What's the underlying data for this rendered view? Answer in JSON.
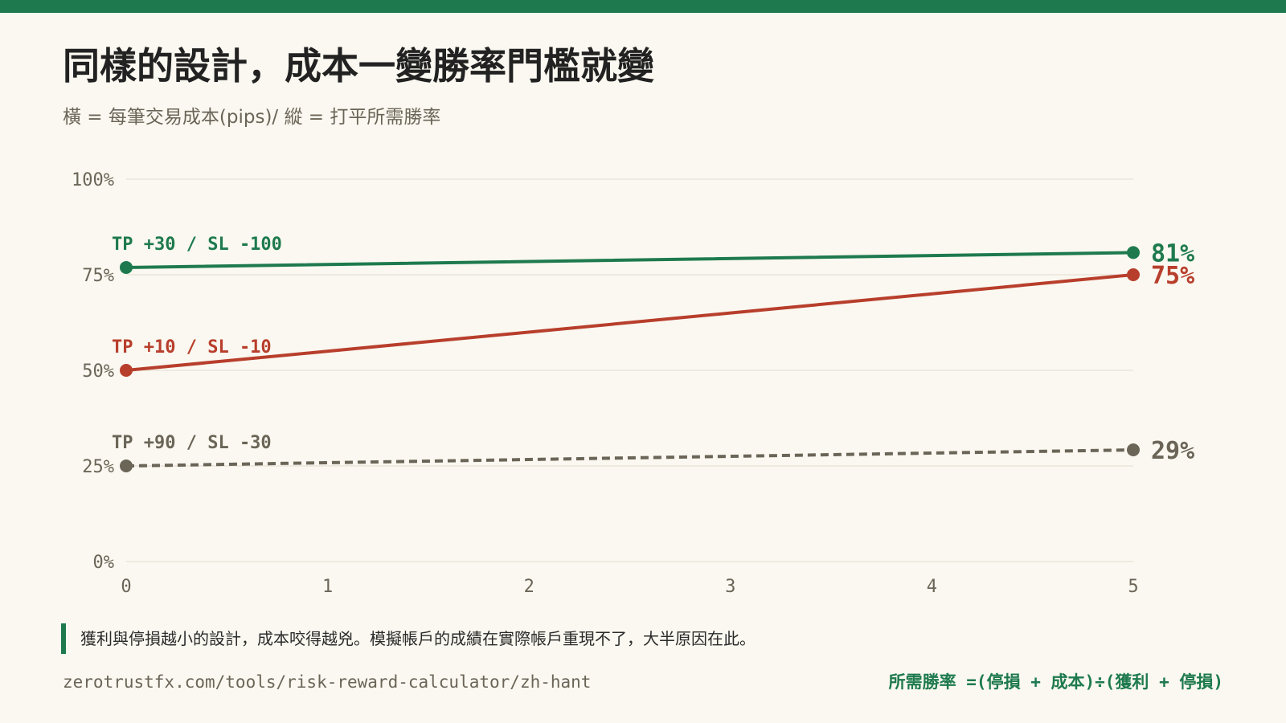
{
  "title": "同樣的設計，成本一變勝率門檻就變",
  "subtitle": "橫 = 每筆交易成本(pips)/ 縱 = 打平所需勝率",
  "chart_data": {
    "type": "line",
    "x": [
      0,
      1,
      2,
      3,
      4,
      5
    ],
    "xticks": [
      "0",
      "1",
      "2",
      "3",
      "4",
      "5"
    ],
    "xlim": [
      0,
      5
    ],
    "ylim": [
      0,
      100
    ],
    "yticks": [
      0,
      25,
      50,
      75,
      100
    ],
    "ytick_labels": [
      "0%",
      "25%",
      "50%",
      "75%",
      "100%"
    ],
    "grid": "horizontal",
    "series": [
      {
        "name": "TP +30 / SL -100",
        "x": [
          0,
          5
        ],
        "y": [
          76.9,
          80.8
        ],
        "end_label": "81%",
        "color": "#1e7a4e",
        "style": "solid"
      },
      {
        "name": "TP +10 / SL -10",
        "x": [
          0,
          5
        ],
        "y": [
          50,
          75
        ],
        "end_label": "75%",
        "color": "#b83e2c",
        "style": "solid"
      },
      {
        "name": "TP +90 / SL -30",
        "x": [
          0,
          5
        ],
        "y": [
          25,
          29.2
        ],
        "end_label": "29%",
        "color": "#6b6558",
        "style": "dashed"
      }
    ]
  },
  "note": "獲利與停損越小的設計，成本咬得越兇。模擬帳戶的成績在實際帳戶重現不了，大半原因在此。",
  "footer": {
    "url": "zerotrustfx.com/tools/risk-reward-calculator/zh-hant",
    "formula": "所需勝率 =(停損 + 成本)÷(獲利 + 停損)"
  },
  "colors": {
    "accent": "#1e7a4e",
    "red": "#b83e2c",
    "gray": "#6b6558",
    "background": "#faf8f0"
  }
}
